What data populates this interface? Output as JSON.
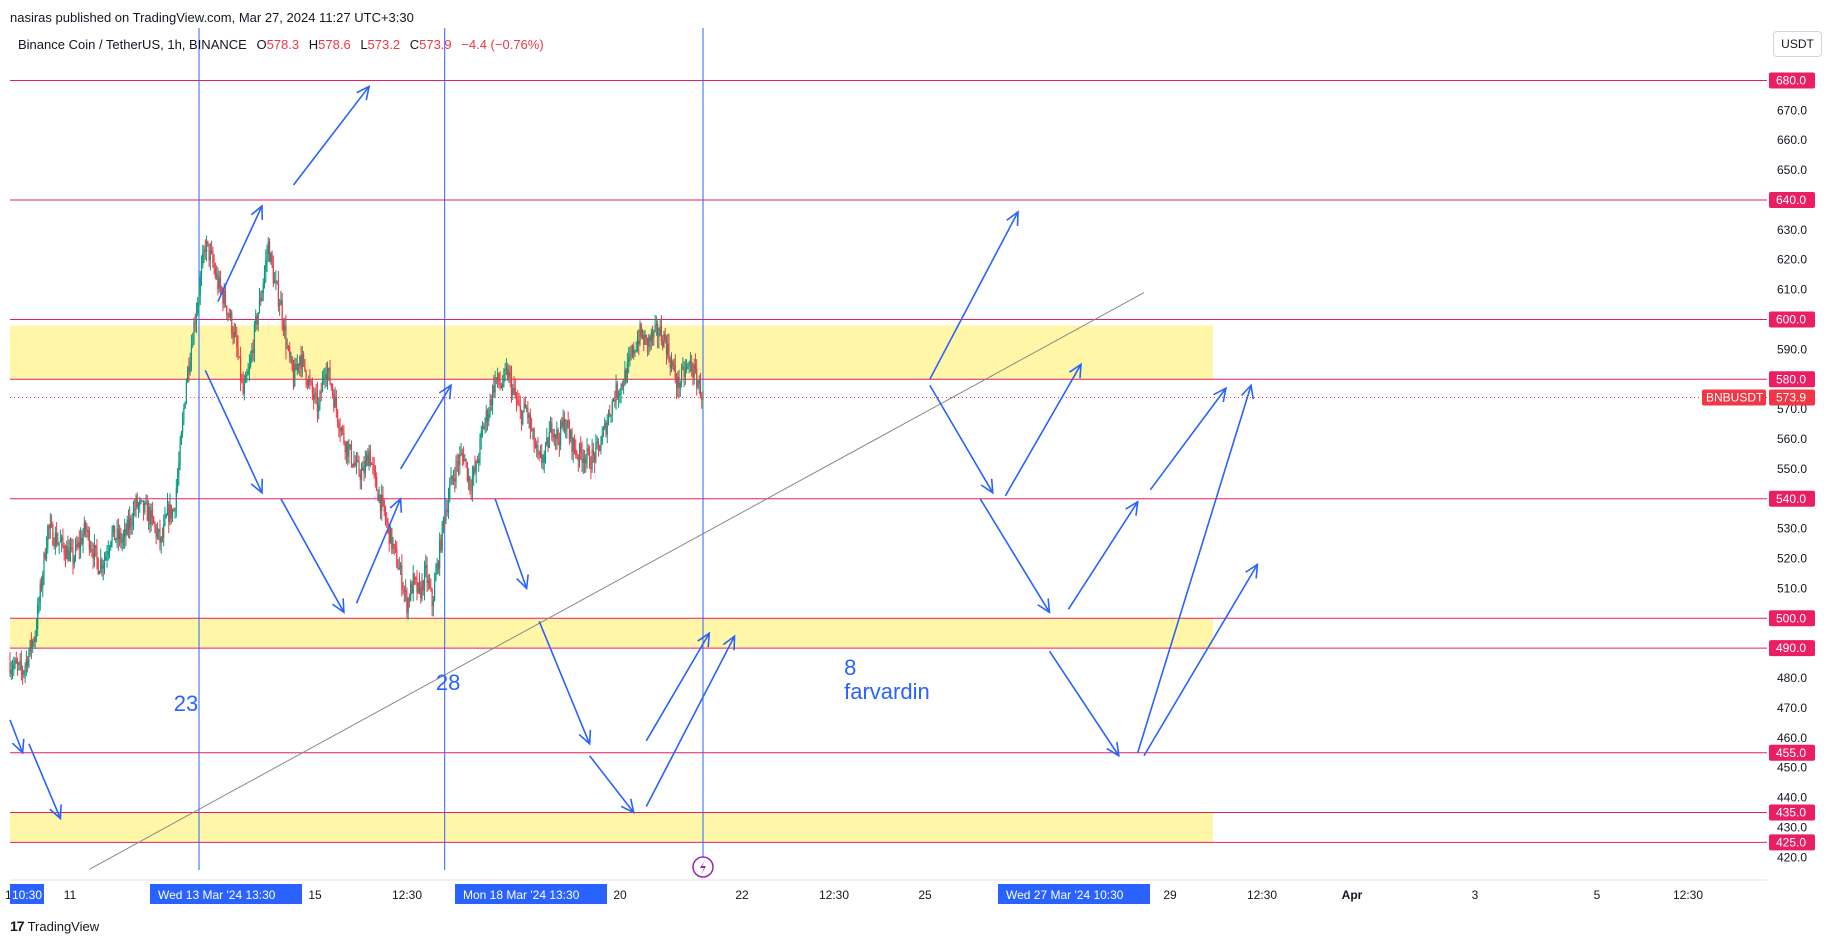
{
  "header": {
    "published_by": "nasiras published on TradingView.com, Mar 27, 2024 11:27 UTC+3:30",
    "symbol": "Binance Coin / TetherUS, 1h, BINANCE",
    "ohlc": {
      "o_label": "O",
      "o": "578.3",
      "h_label": "H",
      "h": "578.6",
      "l_label": "L",
      "l": "573.2",
      "c_label": "C",
      "c": "573.9",
      "change": "−4.4 (−0.76%)"
    },
    "currency_button": "USDT"
  },
  "footer": {
    "brand": "TradingView",
    "logo_glyph": "17"
  },
  "colors": {
    "up": "#089981",
    "down": "#f23645",
    "level_line": "#e91e63",
    "zone_fill": "#fff59d",
    "arrow": "#2962ff",
    "vline": "#2962ff",
    "trend": "#888888",
    "axis_text": "#131722",
    "price_badge": "#f23645"
  },
  "chart_data": {
    "type": "candlestick",
    "symbol": "BNBUSDT",
    "ylim": [
      415,
      690
    ],
    "y_ticks": [
      420,
      430,
      440,
      450,
      460,
      470,
      480,
      490,
      500,
      510,
      520,
      530,
      540,
      550,
      560,
      570,
      580,
      590,
      600,
      610,
      620,
      630,
      640,
      650,
      660,
      670,
      680
    ],
    "x_ticks": [
      "10:30",
      "11",
      "15",
      "12:30",
      "20",
      "22",
      "12:30",
      "25",
      "29",
      "12:30",
      "Apr",
      "3",
      "5",
      "12:30"
    ],
    "x_tick_bold": [
      false,
      false,
      false,
      false,
      false,
      false,
      false,
      false,
      false,
      false,
      true,
      false,
      false,
      false
    ],
    "x_badges": [
      {
        "label": "Wed 13 Mar '24",
        "time": "13:30"
      },
      {
        "label": "Mon 18 Mar '24",
        "time": "13:30"
      },
      {
        "label": "Wed 27 Mar '24",
        "time": "10:30"
      }
    ],
    "last_price": {
      "label": "BNBUSDT",
      "value": "573.9",
      "price": 573.9
    },
    "levels": [
      {
        "price": 680,
        "label": "680.0"
      },
      {
        "price": 640,
        "label": "640.0"
      },
      {
        "price": 600,
        "label": "600.0"
      },
      {
        "price": 580,
        "label": "580.0"
      },
      {
        "price": 540,
        "label": "540.0"
      },
      {
        "price": 500,
        "label": "500.0"
      },
      {
        "price": 490,
        "label": "490.0"
      },
      {
        "price": 455,
        "label": "455.0"
      },
      {
        "price": 435,
        "label": "435.0"
      },
      {
        "price": 425,
        "label": "425.0"
      }
    ],
    "zones": [
      [
        580,
        598
      ],
      [
        490,
        500
      ],
      [
        425,
        435
      ]
    ],
    "path": [
      [
        0,
        485
      ],
      [
        10,
        482
      ],
      [
        20,
        495
      ],
      [
        25,
        512
      ],
      [
        30,
        530
      ],
      [
        40,
        525
      ],
      [
        50,
        520
      ],
      [
        60,
        530
      ],
      [
        65,
        524
      ],
      [
        70,
        518
      ],
      [
        75,
        520
      ],
      [
        80,
        528
      ],
      [
        90,
        526
      ],
      [
        100,
        538
      ],
      [
        110,
        535
      ],
      [
        115,
        530
      ],
      [
        120,
        525
      ],
      [
        125,
        535
      ],
      [
        130,
        536
      ],
      [
        135,
        555
      ],
      [
        140,
        580
      ],
      [
        145,
        595
      ],
      [
        150,
        610
      ],
      [
        155,
        625
      ],
      [
        160,
        620
      ],
      [
        165,
        612
      ],
      [
        170,
        607
      ],
      [
        175,
        600
      ],
      [
        180,
        590
      ],
      [
        185,
        575
      ],
      [
        190,
        583
      ],
      [
        195,
        598
      ],
      [
        200,
        610
      ],
      [
        205,
        625
      ],
      [
        210,
        612
      ],
      [
        215,
        605
      ],
      [
        220,
        590
      ],
      [
        225,
        580
      ],
      [
        230,
        588
      ],
      [
        235,
        582
      ],
      [
        240,
        575
      ],
      [
        245,
        570
      ],
      [
        250,
        585
      ],
      [
        255,
        578
      ],
      [
        260,
        568
      ],
      [
        265,
        560
      ],
      [
        270,
        555
      ],
      [
        275,
        550
      ],
      [
        280,
        548
      ],
      [
        285,
        556
      ],
      [
        290,
        545
      ],
      [
        295,
        538
      ],
      [
        300,
        530
      ],
      [
        305,
        522
      ],
      [
        310,
        515
      ],
      [
        315,
        505
      ],
      [
        320,
        512
      ],
      [
        325,
        508
      ],
      [
        330,
        515
      ],
      [
        335,
        505
      ],
      [
        340,
        520
      ],
      [
        345,
        535
      ],
      [
        350,
        545
      ],
      [
        355,
        552
      ],
      [
        360,
        555
      ],
      [
        365,
        545
      ],
      [
        370,
        550
      ],
      [
        375,
        563
      ],
      [
        380,
        570
      ],
      [
        385,
        580
      ],
      [
        390,
        578
      ],
      [
        395,
        582
      ],
      [
        400,
        575
      ],
      [
        405,
        568
      ],
      [
        410,
        570
      ],
      [
        415,
        560
      ],
      [
        420,
        552
      ],
      [
        425,
        555
      ],
      [
        430,
        565
      ],
      [
        435,
        560
      ],
      [
        440,
        566
      ],
      [
        445,
        560
      ],
      [
        450,
        555
      ],
      [
        455,
        555
      ],
      [
        460,
        553
      ],
      [
        465,
        555
      ],
      [
        470,
        560
      ],
      [
        475,
        568
      ],
      [
        480,
        575
      ],
      [
        485,
        578
      ],
      [
        490,
        583
      ],
      [
        495,
        590
      ],
      [
        500,
        595
      ],
      [
        505,
        592
      ],
      [
        510,
        594
      ],
      [
        515,
        596
      ],
      [
        520,
        593
      ],
      [
        525,
        585
      ],
      [
        530,
        578
      ],
      [
        535,
        582
      ],
      [
        540,
        585
      ],
      [
        545,
        580
      ],
      [
        550,
        574
      ]
    ],
    "x_range_hours": [
      0,
      720
    ],
    "annotations": {
      "vertical_times": [
        150,
        345,
        550
      ],
      "texts": [
        {
          "text": "23",
          "h": 130,
          "p": 469
        },
        {
          "text": "28",
          "h": 338,
          "p": 476
        },
        {
          "text": "8",
          "h": 662,
          "p": 481
        },
        {
          "text": "farvardin",
          "h": 662,
          "p": 473
        }
      ],
      "trend_line": [
        [
          63,
          416
        ],
        [
          900,
          609
        ]
      ],
      "arrows": [
        [
          [
            0,
            466
          ],
          [
            10,
            455
          ]
        ],
        [
          [
            15,
            458
          ],
          [
            40,
            433
          ]
        ],
        [
          [
            155,
            583
          ],
          [
            200,
            542
          ]
        ],
        [
          [
            165,
            606
          ],
          [
            200,
            638
          ]
        ],
        [
          [
            225,
            645
          ],
          [
            285,
            678
          ]
        ],
        [
          [
            215,
            540
          ],
          [
            265,
            502
          ]
        ],
        [
          [
            275,
            505
          ],
          [
            310,
            540
          ]
        ],
        [
          [
            310,
            550
          ],
          [
            350,
            578
          ]
        ],
        [
          [
            385,
            540
          ],
          [
            410,
            510
          ]
        ],
        [
          [
            420,
            499
          ],
          [
            460,
            458
          ]
        ],
        [
          [
            460,
            454
          ],
          [
            495,
            435
          ]
        ],
        [
          [
            505,
            459
          ],
          [
            555,
            495
          ]
        ],
        [
          [
            505,
            437
          ],
          [
            575,
            494
          ]
        ],
        [
          [
            730,
            580
          ],
          [
            800,
            636
          ]
        ],
        [
          [
            730,
            578
          ],
          [
            780,
            542
          ]
        ],
        [
          [
            790,
            541
          ],
          [
            850,
            585
          ]
        ],
        [
          [
            770,
            540
          ],
          [
            825,
            502
          ]
        ],
        [
          [
            840,
            503
          ],
          [
            895,
            539
          ]
        ],
        [
          [
            825,
            489
          ],
          [
            880,
            454
          ]
        ],
        [
          [
            895,
            455
          ],
          [
            985,
            578
          ]
        ],
        [
          [
            905,
            543
          ],
          [
            965,
            577
          ]
        ],
        [
          [
            900,
            454
          ],
          [
            990,
            518
          ]
        ]
      ]
    }
  }
}
